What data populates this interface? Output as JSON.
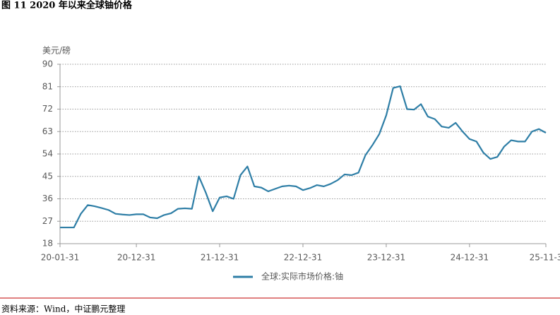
{
  "chart_data": {
    "type": "line",
    "title": "图 11 2020 年以来全球铀价格",
    "y_label": "美元/磅",
    "source": "资料来源：Wind，中证鹏元整理",
    "categories": [
      "20-01-31",
      null,
      null,
      null,
      null,
      null,
      null,
      null,
      null,
      null,
      null,
      "20-12-31",
      null,
      null,
      null,
      null,
      null,
      null,
      null,
      null,
      null,
      null,
      null,
      "21-12-31",
      null,
      null,
      null,
      null,
      null,
      null,
      null,
      null,
      null,
      null,
      null,
      "22-12-31",
      null,
      null,
      null,
      null,
      null,
      null,
      null,
      null,
      null,
      null,
      null,
      "23-12-31",
      null,
      null,
      null,
      null,
      null,
      null,
      null,
      null,
      null,
      null,
      null,
      "24-12-31",
      null,
      null,
      null,
      null,
      null,
      null,
      null,
      null,
      null,
      null,
      "25-11-3"
    ],
    "series": [
      {
        "name": "全球:实际市场价格:铀",
        "color": "#2e7ea6",
        "values": [
          24.5,
          24.5,
          24.5,
          30,
          33.5,
          33,
          32.3,
          31.5,
          30,
          29.7,
          29.5,
          29.8,
          29.8,
          28.5,
          28.2,
          29.5,
          30.2,
          32,
          32.2,
          32,
          45,
          38.5,
          31,
          36.5,
          37,
          36,
          45.5,
          49,
          41,
          40.5,
          39,
          40,
          41,
          41.3,
          41,
          39.5,
          40.3,
          41.5,
          41,
          42,
          43.5,
          45.8,
          45.5,
          46.5,
          53.5,
          57.5,
          62,
          69.5,
          80.5,
          81.2,
          72,
          71.8,
          74,
          69,
          68,
          65,
          64.5,
          66.5,
          63,
          60,
          59,
          54.5,
          52,
          52.8,
          57,
          59.5,
          59,
          59,
          63,
          64,
          62.5
        ]
      }
    ],
    "ylim": [
      18,
      90
    ],
    "yticks": [
      18,
      27,
      36,
      45,
      54,
      63,
      72,
      81,
      90
    ],
    "grid": true,
    "legend": "bottom"
  }
}
